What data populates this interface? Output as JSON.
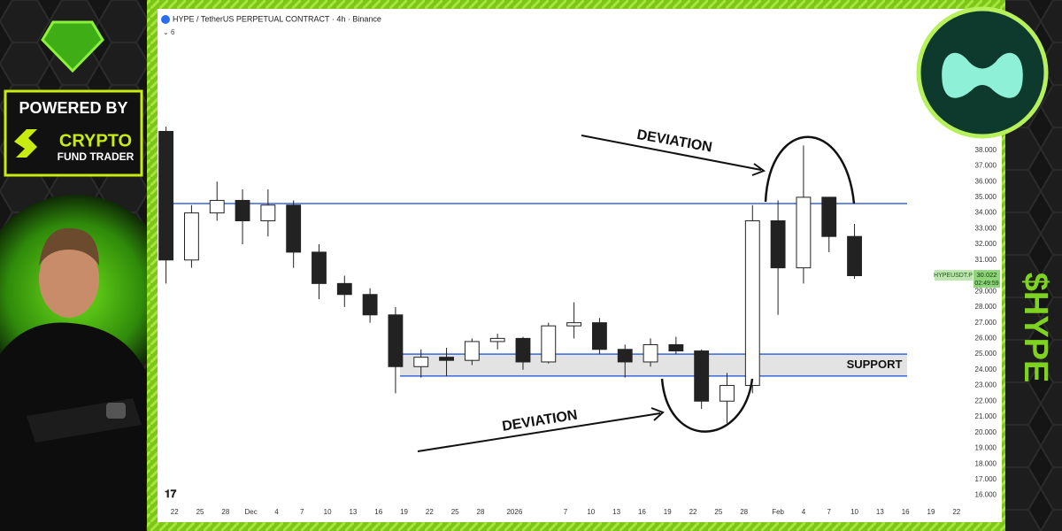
{
  "branding": {
    "powered_by": "POWERED BY",
    "brand_line1": "CRYPTO",
    "brand_line2": "FUND TRADER",
    "ticker": "$HYPE"
  },
  "chart_data": {
    "type": "candlestick",
    "title": "HYPE / TetherUS PERPETUAL CONTRACT · 4h · Binance",
    "collapsed_indicators": 6,
    "x": [
      -1,
      2,
      5,
      8,
      11,
      14,
      17,
      20,
      23,
      26,
      29,
      32,
      35,
      38,
      41,
      44,
      47,
      50,
      53,
      56,
      59,
      62,
      65,
      68,
      71,
      74,
      77,
      80
    ],
    "open": [
      39.2,
      31.0,
      34.0,
      34.8,
      33.5,
      34.5,
      31.5,
      29.5,
      28.8,
      27.5,
      24.2,
      24.8,
      24.6,
      25.8,
      26.0,
      24.5,
      26.8,
      27.0,
      25.3,
      24.5,
      25.6,
      25.2,
      22.0,
      23.0,
      33.5,
      30.5,
      35.0,
      32.5
    ],
    "high": [
      39.5,
      34.5,
      36.0,
      35.5,
      35.5,
      34.8,
      32.0,
      30.0,
      29.2,
      28.0,
      25.3,
      25.4,
      26.0,
      26.3,
      26.1,
      27.0,
      28.3,
      27.3,
      25.6,
      26.0,
      26.1,
      25.3,
      23.8,
      34.5,
      34.8,
      38.3,
      35.0,
      33.3
    ],
    "low": [
      29.5,
      30.5,
      33.5,
      32.0,
      32.5,
      30.5,
      28.5,
      28.0,
      27.0,
      22.5,
      23.5,
      23.6,
      24.3,
      25.3,
      24.0,
      24.4,
      26.0,
      25.0,
      23.5,
      24.2,
      25.0,
      21.5,
      20.6,
      22.5,
      27.5,
      29.5,
      31.5,
      29.8
    ],
    "close": [
      31.0,
      34.0,
      34.8,
      33.5,
      34.5,
      31.5,
      29.5,
      28.8,
      27.5,
      24.2,
      24.8,
      24.6,
      25.8,
      26.0,
      24.5,
      26.8,
      27.0,
      25.3,
      24.5,
      25.6,
      25.2,
      22.0,
      23.0,
      33.5,
      30.5,
      35.0,
      32.5,
      30.0
    ],
    "up_color": "#ffffff",
    "down_color": "#222222",
    "xlim": [
      -2,
      94
    ],
    "xticks": [
      {
        "value": 0,
        "label": "22"
      },
      {
        "value": 3,
        "label": "25"
      },
      {
        "value": 6,
        "label": "28"
      },
      {
        "value": 9,
        "label": "Dec"
      },
      {
        "value": 12,
        "label": "4"
      },
      {
        "value": 15,
        "label": "7"
      },
      {
        "value": 18,
        "label": "10"
      },
      {
        "value": 21,
        "label": "13"
      },
      {
        "value": 24,
        "label": "16"
      },
      {
        "value": 27,
        "label": "19"
      },
      {
        "value": 30,
        "label": "22"
      },
      {
        "value": 33,
        "label": "25"
      },
      {
        "value": 36,
        "label": "28"
      },
      {
        "value": 40,
        "label": "2026"
      },
      {
        "value": 46,
        "label": "7"
      },
      {
        "value": 49,
        "label": "10"
      },
      {
        "value": 52,
        "label": "13"
      },
      {
        "value": 55,
        "label": "16"
      },
      {
        "value": 58,
        "label": "19"
      },
      {
        "value": 61,
        "label": "22"
      },
      {
        "value": 64,
        "label": "25"
      },
      {
        "value": 67,
        "label": "28"
      },
      {
        "value": 71,
        "label": "Feb"
      },
      {
        "value": 74,
        "label": "4"
      },
      {
        "value": 77,
        "label": "7"
      },
      {
        "value": 80,
        "label": "10"
      },
      {
        "value": 83,
        "label": "13"
      },
      {
        "value": 86,
        "label": "16"
      },
      {
        "value": 89,
        "label": "19"
      },
      {
        "value": 92,
        "label": "22"
      }
    ],
    "ylim": [
      15.3,
      46.9
    ],
    "yticks": [
      {
        "value": 16,
        "label": "16.000"
      },
      {
        "value": 17,
        "label": "17.000"
      },
      {
        "value": 18,
        "label": "18.000"
      },
      {
        "value": 19,
        "label": "19.000"
      },
      {
        "value": 20,
        "label": "20.000"
      },
      {
        "value": 21,
        "label": "21.000"
      },
      {
        "value": 22,
        "label": "22.000"
      },
      {
        "value": 23,
        "label": "23.000"
      },
      {
        "value": 24,
        "label": "24.000"
      },
      {
        "value": 25,
        "label": "25.000"
      },
      {
        "value": 26,
        "label": "26.000"
      },
      {
        "value": 27,
        "label": "27.000"
      },
      {
        "value": 28,
        "label": "28.000"
      },
      {
        "value": 29,
        "label": "29.000"
      },
      {
        "value": 30,
        "label": "30.000"
      },
      {
        "value": 31,
        "label": "31.000"
      },
      {
        "value": 32,
        "label": "32.000"
      },
      {
        "value": 33,
        "label": "33.000"
      },
      {
        "value": 34,
        "label": "34.000"
      },
      {
        "value": 35,
        "label": "35.000"
      },
      {
        "value": 36,
        "label": "36.000"
      },
      {
        "value": 37,
        "label": "37.000"
      },
      {
        "value": 38,
        "label": "38.000"
      }
    ],
    "levels": [
      34.6
    ],
    "level_color": "#3a66d8",
    "support_zone": {
      "label": "SUPPORT",
      "low": 23.6,
      "high": 25.0
    },
    "annotations": [
      "DEVIATION",
      "DEVIATION"
    ],
    "last_price": {
      "symbol": "HYPEUSDT.P",
      "value": 30.022,
      "countdown": "02:49:59"
    }
  }
}
